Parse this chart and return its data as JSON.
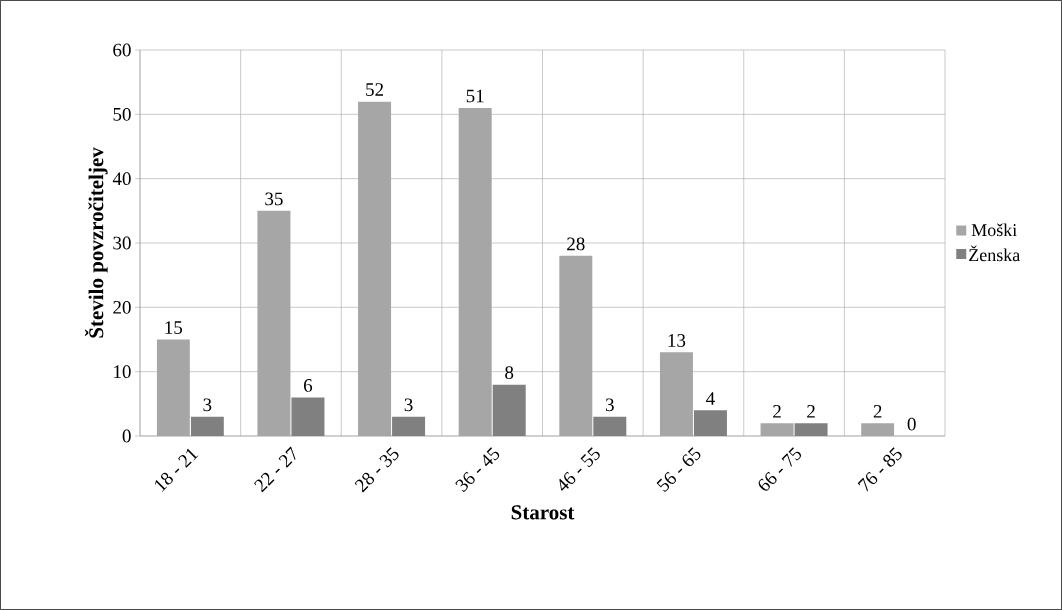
{
  "chart_data": {
    "type": "bar",
    "xlabel": "Starost",
    "ylabel": "Število povzročiteljev",
    "categories": [
      "18 - 21",
      "22 - 27",
      "28 - 35",
      "36 - 45",
      "46 - 55",
      "56 - 65",
      "66 - 75",
      "76 - 85"
    ],
    "series": [
      {
        "name": "Moški",
        "color": "#a6a6a6",
        "values": [
          15,
          35,
          52,
          51,
          28,
          13,
          2,
          2
        ]
      },
      {
        "name": "Ženska",
        "color": "#808080",
        "values": [
          3,
          6,
          3,
          8,
          3,
          4,
          2,
          0
        ]
      }
    ],
    "ylim": [
      0,
      60
    ],
    "yticks": [
      0,
      10,
      20,
      30,
      40,
      50,
      60
    ],
    "grid": true,
    "legend": "right",
    "data_labels": true
  }
}
